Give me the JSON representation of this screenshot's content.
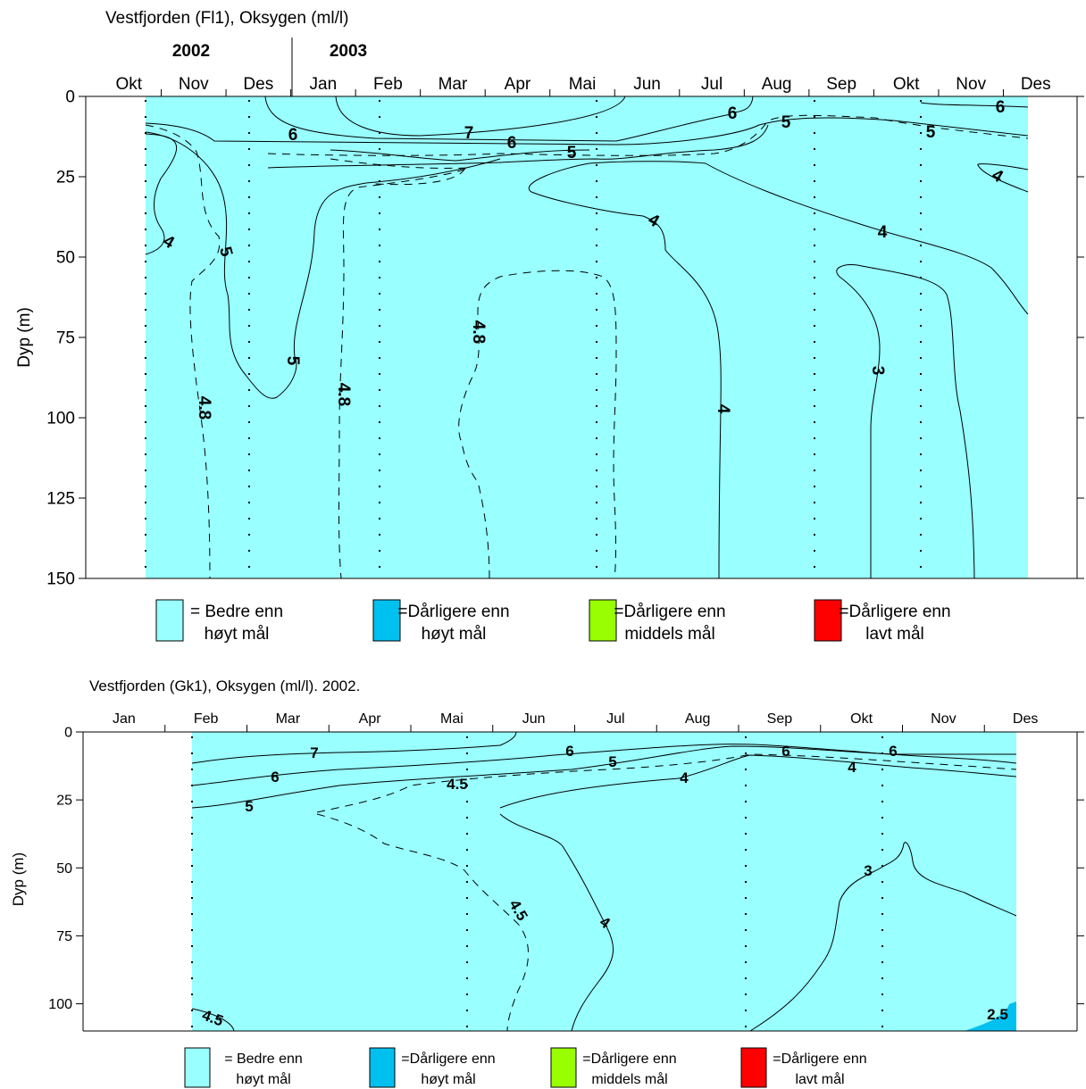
{
  "colors": {
    "better_high": "#99FFFF",
    "worse_high": "#00C0F0",
    "worse_medium": "#99FF00",
    "worse_low": "#FF0000"
  },
  "legend": [
    {
      "key": "better_high",
      "line1": "= Bedre enn",
      "line2": "høyt mål"
    },
    {
      "key": "worse_high",
      "line1": "=Dårligere enn",
      "line2": "høyt mål"
    },
    {
      "key": "worse_medium",
      "line1": "=Dårligere enn",
      "line2": "middels mål"
    },
    {
      "key": "worse_low",
      "line1": "=Dårligere enn",
      "line2": "lavt mål"
    }
  ],
  "chart_data": [
    {
      "type": "contour",
      "title": "Vestfjorden (Fl1), Oksygen (ml/l)",
      "ylabel": "Dyp (m)",
      "year_labels": [
        "2002",
        "2003"
      ],
      "months": [
        "Okt",
        "Nov",
        "Des",
        "Jan",
        "Feb",
        "Mar",
        "Apr",
        "Mai",
        "Jun",
        "Jul",
        "Aug",
        "Sep",
        "Okt",
        "Nov",
        "Des"
      ],
      "y_ticks": [
        0,
        25,
        50,
        75,
        100,
        125,
        150
      ],
      "ylim": [
        150,
        0
      ],
      "contour_labels": [
        "6",
        "7",
        "6",
        "5",
        "6",
        "5",
        "5",
        "6",
        "4",
        "4",
        "4",
        "4",
        "5",
        "4.8",
        "4.8",
        "4.8",
        "5",
        "4",
        "3"
      ],
      "filled_classes": [
        "better_high"
      ]
    },
    {
      "type": "contour",
      "title": "Vestfjorden (Gk1), Oksygen (ml/l). 2002.",
      "ylabel": "Dyp (m)",
      "months": [
        "Jan",
        "Feb",
        "Mar",
        "Apr",
        "Mai",
        "Jun",
        "Jul",
        "Aug",
        "Sep",
        "Okt",
        "Nov",
        "Des"
      ],
      "y_ticks": [
        0,
        25,
        50,
        75,
        100
      ],
      "ylim": [
        110,
        0
      ],
      "contour_labels": [
        "7",
        "6",
        "6",
        "5",
        "5",
        "4.5",
        "4",
        "6",
        "6",
        "4",
        "4",
        "4.5",
        "3",
        "4.5",
        "2.5"
      ],
      "filled_classes": [
        "better_high",
        "worse_high"
      ]
    }
  ]
}
